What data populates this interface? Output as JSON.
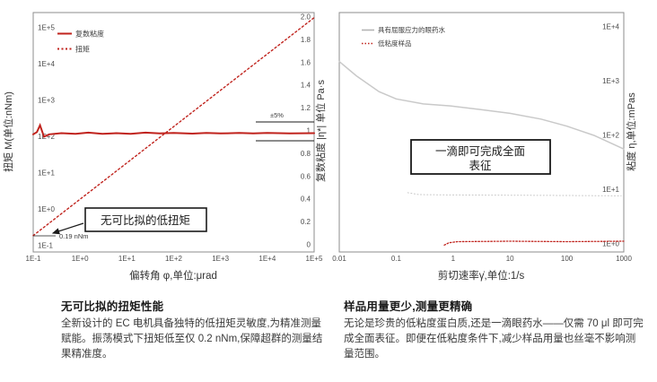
{
  "colors": {
    "red": "#c0231d",
    "gray_curve": "#c9c9c9",
    "faint_dotted": "#c6c6c6",
    "axis_frame": "#8c8c8c",
    "tick_text": "#4d4d4d",
    "annotation_text": "#1a1a1a"
  },
  "chart_data": [
    {
      "type": "line",
      "xlabel": "偏转角 φ,单位:μrad",
      "x_scale": "log",
      "xlim": [
        0.1,
        100000
      ],
      "x_ticks": [
        "1E-1",
        "1E+0",
        "1E+1",
        "1E+2",
        "1E+3",
        "1E+4",
        "1E+5"
      ],
      "ylabel_left": "扭矩 M(单位:nNm)",
      "y_left_scale": "log",
      "ylim_left": [
        0.1,
        100000
      ],
      "y_left_ticks": [
        "1E-1",
        "1E+0",
        "1E+1",
        "1E+2",
        "1E+3",
        "1E+4",
        "1E+5"
      ],
      "ylabel_right": "复数粘度 |η*| 单位 Pa·s",
      "y_right_scale": "linear",
      "ylim_right": [
        0,
        2.0
      ],
      "y_right_ticks": [
        "2.0",
        "1.8",
        "1.6",
        "1.4",
        "1.2",
        "1",
        "0.8",
        "0.6",
        "0.4",
        "0.2",
        "0"
      ],
      "legend_position": "top-left-inside",
      "grid": false,
      "legend": [
        {
          "label": "复数粘度",
          "style": "solid",
          "color": "#c0231d"
        },
        {
          "label": "扭矩",
          "style": "dotted",
          "color": "#c0231d"
        }
      ],
      "series": [
        {
          "name": "复数粘度",
          "axis": "right",
          "style": "solid",
          "color": "#c0231d",
          "points": [
            [
              0.1,
              0.97
            ],
            [
              0.12,
              0.99
            ],
            [
              0.14,
              1.05
            ],
            [
              0.17,
              0.95
            ],
            [
              0.22,
              0.97
            ],
            [
              0.4,
              0.98
            ],
            [
              0.8,
              0.975
            ],
            [
              1.5,
              0.985
            ],
            [
              3,
              0.975
            ],
            [
              6,
              0.98
            ],
            [
              12,
              0.975
            ],
            [
              25,
              0.985
            ],
            [
              50,
              0.978
            ],
            [
              100,
              0.982
            ],
            [
              250,
              0.976
            ],
            [
              500,
              0.982
            ],
            [
              1000,
              0.978
            ],
            [
              2500,
              0.982
            ],
            [
              5000,
              0.978
            ],
            [
              10000,
              0.982
            ],
            [
              30000,
              0.979
            ],
            [
              100000,
              0.98
            ]
          ]
        },
        {
          "name": "扭矩",
          "axis": "left",
          "style": "dotted",
          "color": "#c0231d",
          "points": [
            [
              0.1,
              0.19
            ],
            [
              100000,
              190000
            ]
          ]
        }
      ],
      "annotations": {
        "box_label": "无可比拟的低扭矩",
        "marker_label": "0.19 nNm",
        "band_label": "±5%"
      }
    },
    {
      "type": "line",
      "xlabel": "剪切速率γ̇,单位:1/s",
      "x_scale": "log",
      "xlim": [
        0.01,
        1000
      ],
      "x_ticks": [
        "0.01",
        "0.1",
        "1",
        "10",
        "100",
        "1000"
      ],
      "ylabel": "粘度 η,单位:mPas",
      "y_scale": "log",
      "ylim": [
        1,
        10000
      ],
      "y_ticks": [
        "1E+4",
        "1E+3",
        "1E+2",
        "1E+1",
        "1E+0"
      ],
      "legend_position": "top-left-inside",
      "grid": false,
      "legend": [
        {
          "label": "具有屈服应力的眼药水",
          "style": "solid",
          "color": "#b4b4b4"
        },
        {
          "label": "低粘度样品",
          "style": "dotted",
          "color": "#c0231d"
        }
      ],
      "series": [
        {
          "name": "具有屈服应力的眼药水",
          "style": "solid",
          "color": "#c9c9c9",
          "points": [
            [
              0.01,
              2300
            ],
            [
              0.02,
              1250
            ],
            [
              0.05,
              640
            ],
            [
              0.1,
              470
            ],
            [
              0.3,
              380
            ],
            [
              0.9,
              350
            ],
            [
              3,
              300
            ],
            [
              10,
              255
            ],
            [
              35,
              200
            ],
            [
              100,
              148
            ],
            [
              300,
              100
            ],
            [
              1000,
              56
            ]
          ]
        },
        {
          "name": "faint_dotted_line",
          "style": "dotted",
          "color": "#c6c6c6",
          "points": [
            [
              0.16,
              8.8
            ],
            [
              0.25,
              8.1
            ],
            [
              1,
              8.0
            ],
            [
              10,
              7.9
            ],
            [
              100,
              7.8
            ],
            [
              900,
              7.7
            ]
          ]
        },
        {
          "name": "低粘度样品",
          "style": "dotted",
          "color": "#c0231d",
          "points": [
            [
              0.7,
              0.95
            ],
            [
              0.85,
              1.05
            ],
            [
              1.2,
              1.1
            ],
            [
              10,
              1.12
            ],
            [
              100,
              1.1
            ],
            [
              1000,
              1.12
            ]
          ]
        }
      ],
      "annotations": {
        "box_line1": "一滴即可完成全面",
        "box_line2": "表征"
      }
    }
  ],
  "sections": [
    {
      "title": "无可比拟的扭矩性能",
      "body": "全新设计的 EC 电机具备独特的低扭矩灵敏度,为精准测量赋能。振荡模式下扭矩低至仅 0.2 nNm,保障超群的测量结果精准度。"
    },
    {
      "title": "样品用量更少,测量更精确",
      "body": "无论是珍贵的低粘度蛋白质,还是一滴眼药水——仅需 70 μl 即可完成全面表征。即便在低粘度条件下,减少样品用量也丝毫不影响测量范围。"
    }
  ]
}
